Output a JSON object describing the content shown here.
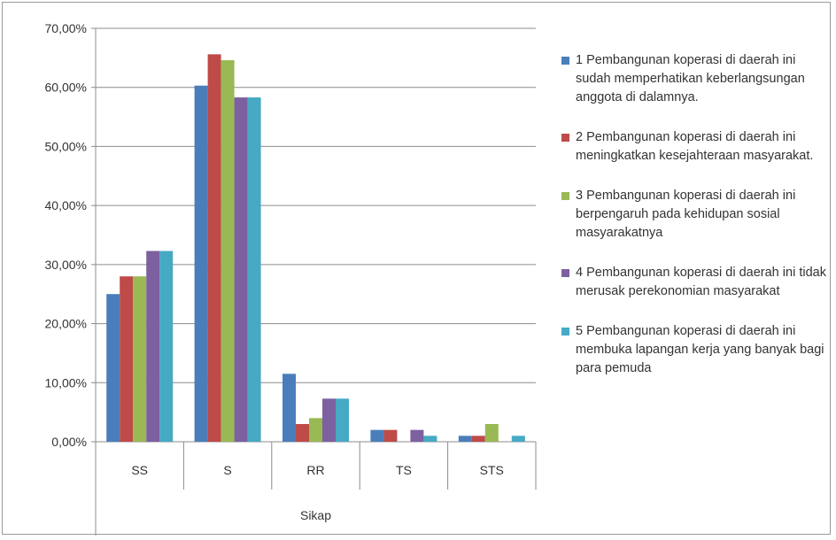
{
  "chart_data": {
    "type": "bar",
    "xlabel": "Sikap",
    "ylabel": "",
    "ylim": [
      0,
      70
    ],
    "yticks": [
      0,
      10,
      20,
      30,
      40,
      50,
      60,
      70
    ],
    "ytick_labels": [
      "0,00%",
      "10,00%",
      "20,00%",
      "30,00%",
      "40,00%",
      "50,00%",
      "60,00%",
      "70,00%"
    ],
    "grid": true,
    "legend_position": "right",
    "categories": [
      "SS",
      "S",
      "RR",
      "TS",
      "STS"
    ],
    "series": [
      {
        "name": "1 Pembangunan koperasi di daerah ini sudah memperhatikan keberlangsungan anggota di dalamnya.",
        "color": "#4a7ebb",
        "values": [
          25,
          60.3,
          11.5,
          2,
          1
        ]
      },
      {
        "name": "2 Pembangunan koperasi di daerah ini meningkatkan kesejahteraan masyarakat.",
        "color": "#be4b48",
        "values": [
          28,
          65.6,
          3,
          2,
          1
        ]
      },
      {
        "name": "3 Pembangunan koperasi di daerah ini berpengaruh pada kehidupan sosial masyarakatnya",
        "color": "#98b954",
        "values": [
          28,
          64.6,
          4,
          0,
          3
        ]
      },
      {
        "name": "4 Pembangunan koperasi di daerah ini tidak merusak perekonomian masyarakat",
        "color": "#7d60a0",
        "values": [
          32.3,
          58.3,
          7.3,
          2,
          0
        ]
      },
      {
        "name": "5 Pembangunan koperasi di daerah ini membuka lapangan kerja yang banyak bagi para pemuda",
        "color": "#46aac5",
        "values": [
          32.3,
          58.3,
          7.3,
          1,
          1
        ]
      }
    ]
  }
}
